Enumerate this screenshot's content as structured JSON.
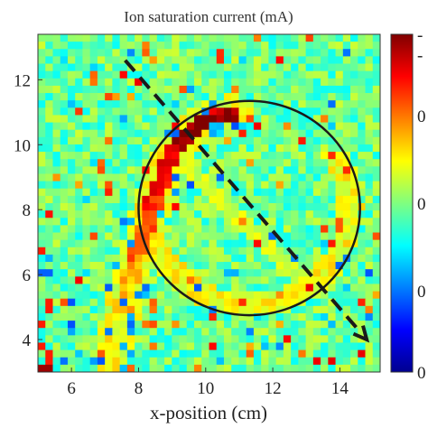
{
  "chart_data": {
    "type": "heatmap",
    "title": "Ion saturation current (mA)",
    "xlabel": "x-position (cm)",
    "ylabel": "",
    "xlim": [
      5,
      15.2
    ],
    "ylim": [
      3,
      13.4
    ],
    "x_ticks": [
      "6",
      "8",
      "10",
      "12",
      "14"
    ],
    "x_tick_values": [
      6,
      8,
      10,
      12,
      14
    ],
    "y_ticks": [
      "4",
      "6",
      "8",
      "10",
      "12"
    ],
    "y_tick_values": [
      4,
      6,
      8,
      10,
      12
    ],
    "grid_cols": 46,
    "grid_rows": 46,
    "colormap": "jet",
    "colorbar_tick_labels": [
      "0",
      "0",
      "0",
      "0",
      "-",
      "-"
    ],
    "colorbar_tick_positions": [
      0.0,
      0.24,
      0.5,
      0.76,
      0.94,
      1.0
    ],
    "circle": {
      "cx": 11.3,
      "cy": 8.05,
      "r": 3.3,
      "color": "#1a1a1a"
    },
    "arrow": {
      "x0": 7.6,
      "y0": 12.6,
      "x1": 14.8,
      "y1": 4.0,
      "style": "dashed",
      "color": "#1a1a1a"
    },
    "features": {
      "background_value": 0.48,
      "noise_amplitude": 0.1,
      "hot_arc": {
        "description_points": [
          [
            7.2,
            3.3
          ],
          [
            7.5,
            5.0
          ],
          [
            8.0,
            6.7
          ],
          [
            8.5,
            8.4
          ],
          [
            9.0,
            9.7
          ],
          [
            9.8,
            10.6
          ],
          [
            10.8,
            11.0
          ]
        ],
        "peak_value": 0.98
      },
      "ring_value": 0.62,
      "ring_width": 0.35,
      "ring_radius": 3.0,
      "inner_band_value": 0.58,
      "cold_edge_value": 0.22
    }
  }
}
